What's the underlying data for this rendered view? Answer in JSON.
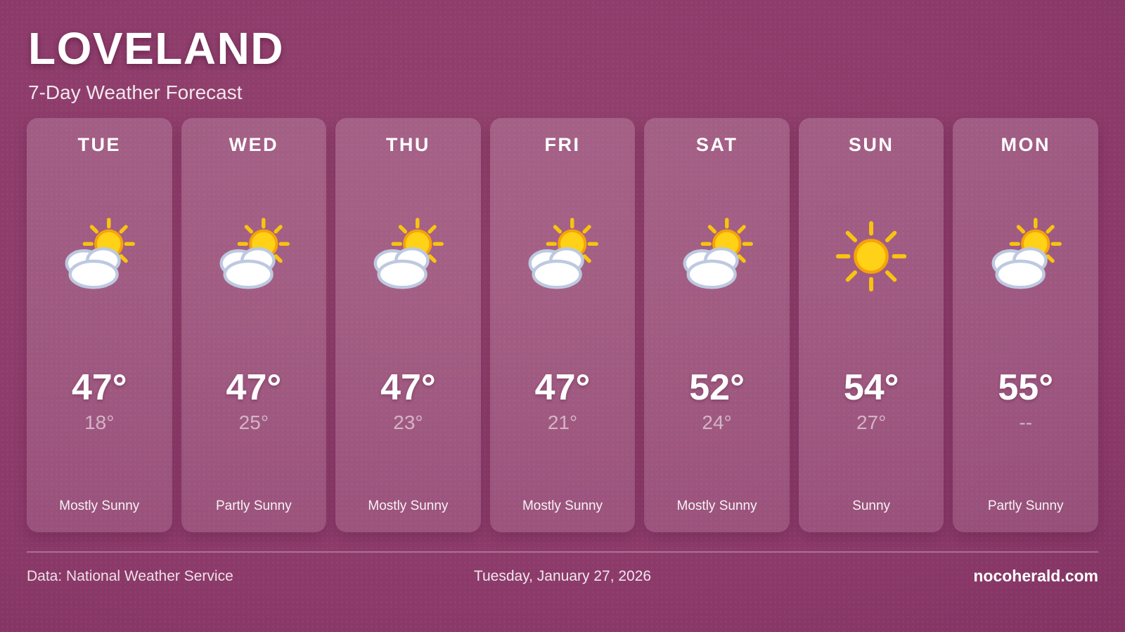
{
  "header": {
    "title": "LOVELAND",
    "subtitle": "7-Day Weather Forecast"
  },
  "days": [
    {
      "label": "TUE",
      "icon": "sun-behind-cloud",
      "high": "47°",
      "low": "18°",
      "condition": "Mostly Sunny"
    },
    {
      "label": "WED",
      "icon": "sun-behind-cloud",
      "high": "47°",
      "low": "25°",
      "condition": "Partly Sunny"
    },
    {
      "label": "THU",
      "icon": "sun-behind-cloud",
      "high": "47°",
      "low": "23°",
      "condition": "Mostly Sunny"
    },
    {
      "label": "FRI",
      "icon": "sun-behind-cloud",
      "high": "47°",
      "low": "21°",
      "condition": "Mostly Sunny"
    },
    {
      "label": "SAT",
      "icon": "sun-behind-cloud",
      "high": "52°",
      "low": "24°",
      "condition": "Mostly Sunny"
    },
    {
      "label": "SUN",
      "icon": "sun",
      "high": "54°",
      "low": "27°",
      "condition": "Sunny"
    },
    {
      "label": "MON",
      "icon": "sun-behind-cloud",
      "high": "55°",
      "low": "--",
      "condition": "Partly Sunny"
    }
  ],
  "footer": {
    "source": "Data: National Weather Service",
    "date": "Tuesday, January 27, 2026",
    "site": "nocoherald.com"
  },
  "colors": {
    "background": "#8c3a6a",
    "card": "rgba(255,255,255,0.15)",
    "sun_fill": "#FFD117",
    "sun_stroke": "#F7A307",
    "ray": "#F8C40F",
    "cloud_fill": "#FFFFFF",
    "cloud_stroke": "#BDC9E0",
    "text": "#FFFFFF"
  }
}
